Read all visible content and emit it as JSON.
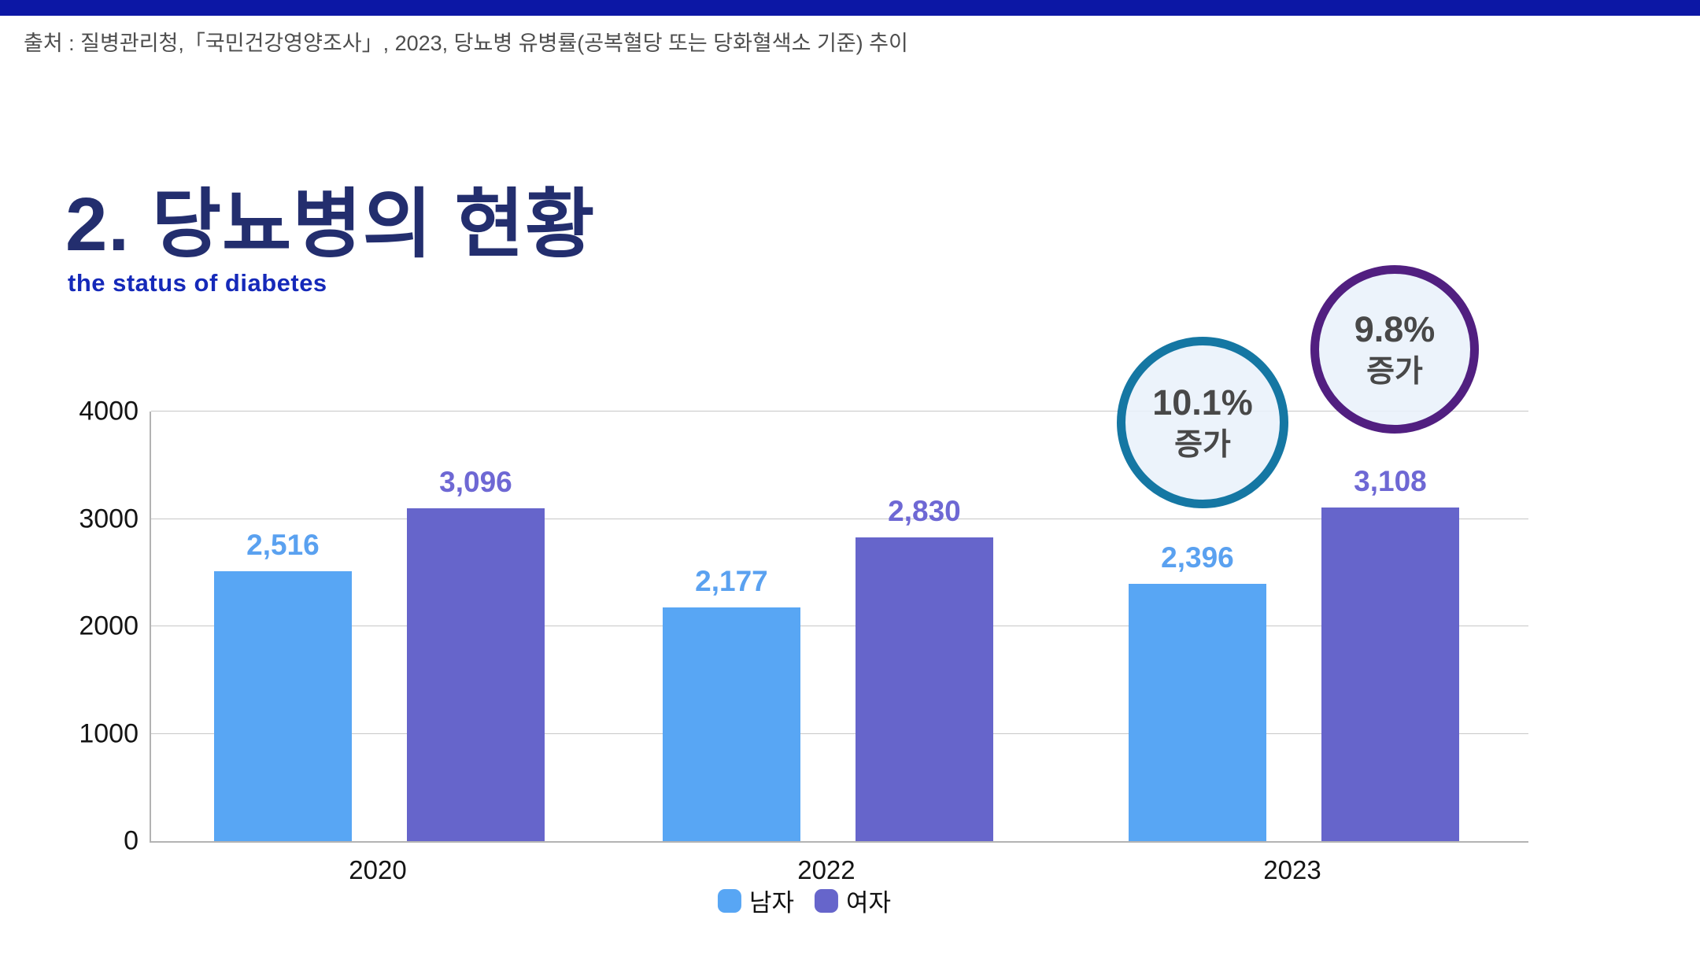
{
  "page": {
    "source_text": "출처 : 질병관리청,「국민건강영양조사」, 2023, 당뇨병 유병률(공복혈당 또는 당화혈색소 기준) 추이",
    "title": "2. 당뇨병의 현황",
    "subtitle": "the status of diabetes"
  },
  "colors": {
    "top_bar": "#0c17a5",
    "title": "#232e6e",
    "subtitle": "#1529b9",
    "source_text": "#4d4d4d",
    "male_bar": "#58a6f4",
    "female_bar": "#6665cb",
    "male_value_label": "#5aa1f0",
    "female_value_label": "#6e68d4",
    "gridline": "#c7c7c7",
    "axis_line": "#b3b3b3",
    "badge_fill": "#e9f1fa",
    "badge1_border": "#1577a3",
    "badge2_border": "#511f80",
    "badge_text": "#484848"
  },
  "chart_data": {
    "type": "bar",
    "title": "",
    "xlabel": "",
    "ylabel": "",
    "categories": [
      "2020",
      "2022",
      "2023"
    ],
    "series": [
      {
        "name": "남자",
        "color": "#58a6f4",
        "label_color": "#5aa1f0",
        "values": [
          2516,
          2177,
          2396
        ],
        "value_labels": [
          "2,516",
          "2,177",
          "2,396"
        ]
      },
      {
        "name": "여자",
        "color": "#6665cb",
        "label_color": "#6e68d4",
        "values": [
          3096,
          2830,
          3108
        ],
        "value_labels": [
          "3,096",
          "2,830",
          "3,108"
        ]
      }
    ],
    "ylim": [
      0,
      4000
    ],
    "yticks": [
      0,
      1000,
      2000,
      3000,
      4000
    ],
    "grid": true,
    "legend_position": "bottom-center"
  },
  "badges": [
    {
      "percent": "10.1%",
      "label": "증가"
    },
    {
      "percent": "9.8%",
      "label": "증가"
    }
  ]
}
